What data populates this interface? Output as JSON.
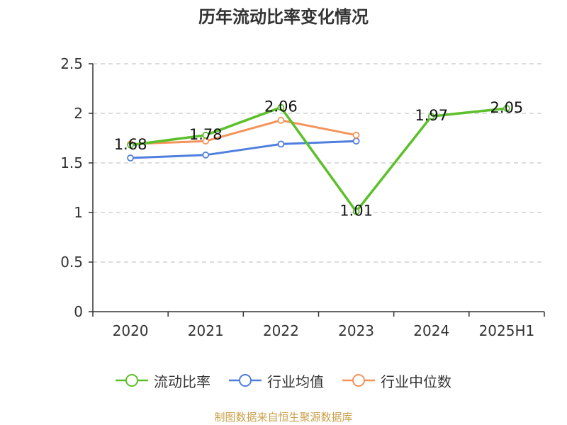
{
  "title": "历年流动比率变化情况",
  "source_note": "制图数据来自恒生聚源数据库",
  "colors": {
    "series0": "#5cc02b",
    "series1": "#4f7fdd",
    "series2": "#f5935a",
    "axis": "#333333",
    "grid": "#bbbbbb",
    "text": "#333333"
  },
  "chart_data": {
    "type": "line",
    "title": "历年流动比率变化情况",
    "xlabel": "",
    "ylabel": "",
    "categories": [
      "2020",
      "2021",
      "2022",
      "2023",
      "2024",
      "2025H1"
    ],
    "ylim": [
      0,
      2.5
    ],
    "yticks": [
      0,
      0.5,
      1,
      1.5,
      2,
      2.5
    ],
    "ytick_labels": [
      "0",
      "0.5",
      "1",
      "1.5",
      "2",
      "2.5"
    ],
    "grid": true,
    "legend_position": "bottom",
    "series": [
      {
        "name": "流动比率",
        "values": [
          1.68,
          1.78,
          2.06,
          1.01,
          1.97,
          2.05
        ],
        "labels": [
          "1.68",
          "1.78",
          "2.06",
          "1.01",
          "1.97",
          "2.05"
        ]
      },
      {
        "name": "行业均值",
        "values": [
          1.55,
          1.58,
          1.69,
          1.72,
          null,
          null
        ]
      },
      {
        "name": "行业中位数",
        "values": [
          1.69,
          1.72,
          1.93,
          1.78,
          null,
          null
        ]
      }
    ]
  }
}
